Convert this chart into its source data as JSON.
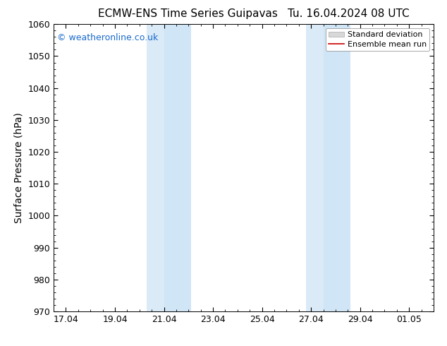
{
  "title": "ECMW-ENS Time Series Guipavas",
  "title_right": "Tu. 16.04.2024 08 UTC",
  "ylabel": "Surface Pressure (hPa)",
  "ylim": [
    970,
    1060
  ],
  "yticks": [
    970,
    980,
    990,
    1000,
    1010,
    1020,
    1030,
    1040,
    1050,
    1060
  ],
  "xtick_labels": [
    "17.04",
    "19.04",
    "21.04",
    "23.04",
    "25.04",
    "27.04",
    "29.04",
    "01.05"
  ],
  "xtick_positions": [
    17,
    19,
    21,
    23,
    25,
    27,
    29,
    31
  ],
  "x_min": 16.5,
  "x_max": 32.0,
  "shaded_regions": [
    {
      "x_start": 20.3,
      "x_end": 21.0,
      "color": "#daeaf7"
    },
    {
      "x_start": 21.0,
      "x_end": 22.1,
      "color": "#d0e5f5"
    },
    {
      "x_start": 26.8,
      "x_end": 27.5,
      "color": "#daeaf7"
    },
    {
      "x_start": 27.5,
      "x_end": 28.6,
      "color": "#d0e5f5"
    }
  ],
  "watermark_text": "© weatheronline.co.uk",
  "watermark_color": "#1a6acc",
  "background_color": "#ffffff",
  "legend_std_facecolor": "#d8d8d8",
  "legend_std_edgecolor": "#aaaaaa",
  "legend_mean_color": "#cc0000",
  "title_fontsize": 11,
  "ylabel_fontsize": 10,
  "tick_fontsize": 9,
  "watermark_fontsize": 9,
  "legend_fontsize": 8
}
